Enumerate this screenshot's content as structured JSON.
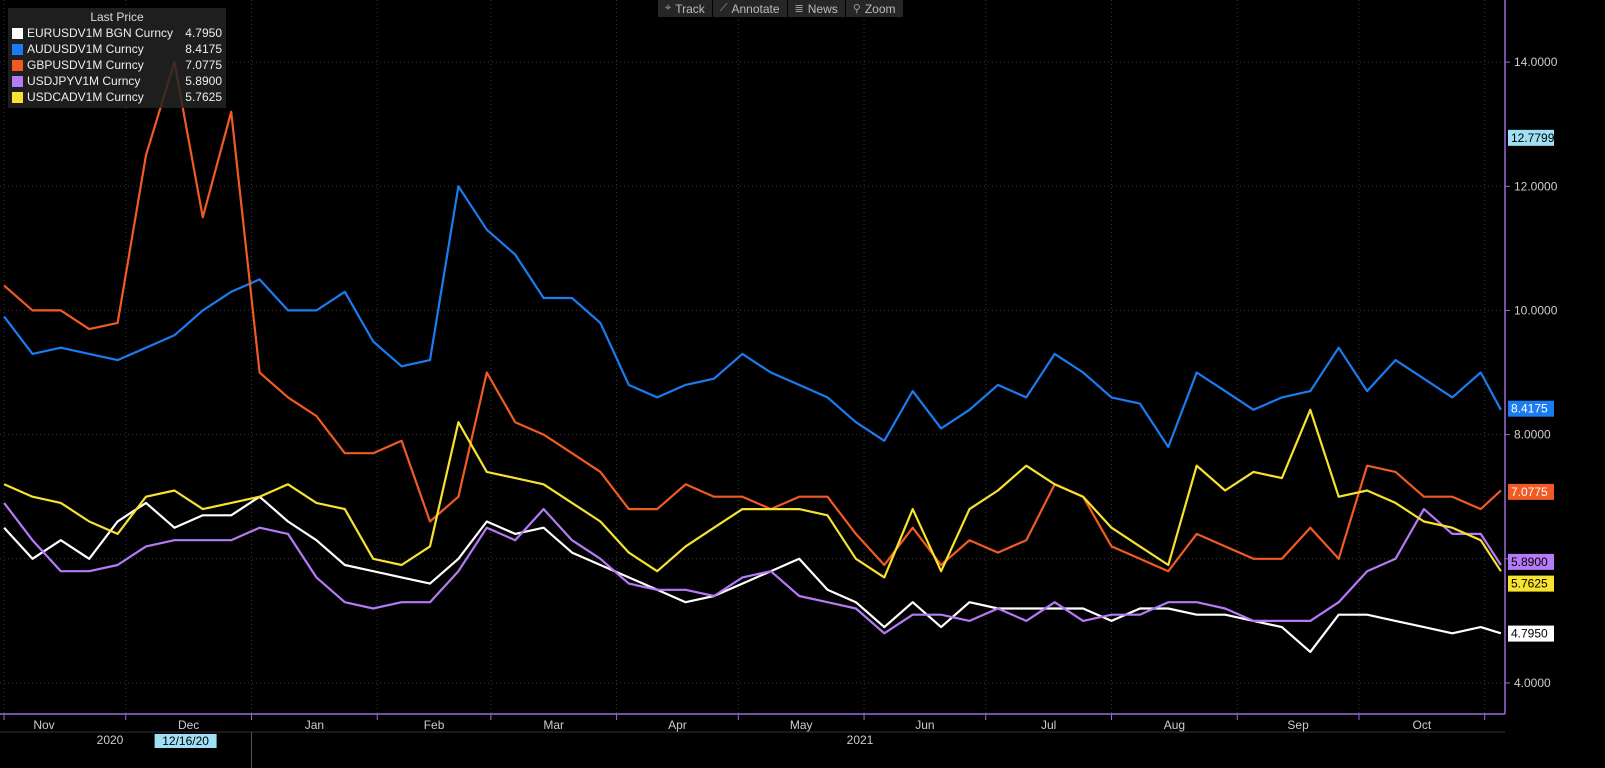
{
  "toolbar": {
    "items": [
      {
        "icon": "crosshair-icon",
        "glyph": "⌖",
        "label": "Track"
      },
      {
        "icon": "pencil-icon",
        "glyph": "⟋",
        "label": "Annotate"
      },
      {
        "icon": "news-icon",
        "glyph": "≣",
        "label": "News"
      },
      {
        "icon": "magnifier-icon",
        "glyph": "⚲",
        "label": "Zoom"
      }
    ]
  },
  "legend": {
    "title": "Last Price",
    "entries": [
      {
        "name": "EURUSDV1M BGN Curncy",
        "value": "4.7950",
        "color": "#ffffff"
      },
      {
        "name": "AUDUSDV1M Curncy",
        "value": "8.4175",
        "color": "#1a7cf0"
      },
      {
        "name": "GBPUSDV1M Curncy",
        "value": "7.0775",
        "color": "#f15a22"
      },
      {
        "name": "USDJPYV1M Curncy",
        "value": "5.8900",
        "color": "#b57af5"
      },
      {
        "name": "USDCADV1M Curncy",
        "value": "5.7625",
        "color": "#f7e22f"
      }
    ]
  },
  "range_marker": {
    "value": "12.7799",
    "color": "#9fe0f5",
    "y": 12.7799
  },
  "chart_data": {
    "type": "line",
    "x_labels": {
      "months": [
        "Nov",
        "Dec",
        "Jan",
        "Feb",
        "Mar",
        "Apr",
        "May",
        "Jun",
        "Jul",
        "Aug",
        "Sep",
        "Oct"
      ],
      "years": [
        "2020",
        "2021"
      ],
      "highlight_date": "12/16/20"
    },
    "ylim": [
      3.5,
      15.0
    ],
    "y_ticks": [
      "4.0000",
      "6.0000",
      "8.0000",
      "10.0000",
      "12.0000",
      "14.0000"
    ],
    "y_tick_values": [
      4,
      6,
      8,
      10,
      12,
      14
    ],
    "grid": true,
    "dates": [
      "2020-11-01",
      "2020-11-08",
      "2020-11-15",
      "2020-11-22",
      "2020-11-29",
      "2020-12-06",
      "2020-12-13",
      "2020-12-20",
      "2020-12-27",
      "2021-01-03",
      "2021-01-10",
      "2021-01-17",
      "2021-01-24",
      "2021-01-31",
      "2021-02-07",
      "2021-02-14",
      "2021-02-21",
      "2021-02-28",
      "2021-03-07",
      "2021-03-14",
      "2021-03-21",
      "2021-03-28",
      "2021-04-04",
      "2021-04-11",
      "2021-04-18",
      "2021-04-25",
      "2021-05-02",
      "2021-05-09",
      "2021-05-16",
      "2021-05-23",
      "2021-05-30",
      "2021-06-06",
      "2021-06-13",
      "2021-06-20",
      "2021-06-27",
      "2021-07-04",
      "2021-07-11",
      "2021-07-18",
      "2021-07-25",
      "2021-08-01",
      "2021-08-08",
      "2021-08-15",
      "2021-08-22",
      "2021-08-29",
      "2021-09-05",
      "2021-09-12",
      "2021-09-19",
      "2021-09-26",
      "2021-10-03",
      "2021-10-10",
      "2021-10-17",
      "2021-10-24",
      "2021-10-31",
      "2021-11-05"
    ],
    "series": [
      {
        "name": "EURUSDV1M BGN Curncy",
        "color": "#ffffff",
        "last": "4.7950",
        "values": [
          6.5,
          6.0,
          6.3,
          6.0,
          6.6,
          6.9,
          6.5,
          6.7,
          6.7,
          7.0,
          6.6,
          6.3,
          5.9,
          5.8,
          5.7,
          5.6,
          6.0,
          6.6,
          6.4,
          6.5,
          6.1,
          5.9,
          5.7,
          5.5,
          5.3,
          5.4,
          5.6,
          5.8,
          6.0,
          5.5,
          5.3,
          4.9,
          5.3,
          4.9,
          5.3,
          5.2,
          5.2,
          5.2,
          5.2,
          5.0,
          5.2,
          5.2,
          5.1,
          5.1,
          5.0,
          4.9,
          4.5,
          5.1,
          5.1,
          5.0,
          4.9,
          4.8,
          4.9,
          4.8
        ]
      },
      {
        "name": "AUDUSDV1M Curncy",
        "color": "#1a7cf0",
        "last": "8.4175",
        "values": [
          9.9,
          9.3,
          9.4,
          9.3,
          9.2,
          9.4,
          9.6,
          10.0,
          10.3,
          10.5,
          10.0,
          10.0,
          10.3,
          9.5,
          9.1,
          9.2,
          12.0,
          11.3,
          10.9,
          10.2,
          10.2,
          9.8,
          8.8,
          8.6,
          8.8,
          8.9,
          9.3,
          9.0,
          8.8,
          8.6,
          8.2,
          7.9,
          8.7,
          8.1,
          8.4,
          8.8,
          8.6,
          9.3,
          9.0,
          8.6,
          8.5,
          7.8,
          9.0,
          8.7,
          8.4,
          8.6,
          8.7,
          9.4,
          8.7,
          9.2,
          8.9,
          8.6,
          9.0,
          8.4
        ]
      },
      {
        "name": "GBPUSDV1M Curncy",
        "color": "#f15a22",
        "last": "7.0775",
        "values": [
          10.4,
          10.0,
          10.0,
          9.7,
          9.8,
          12.5,
          14.0,
          11.5,
          13.2,
          9.0,
          8.6,
          8.3,
          7.7,
          7.7,
          7.9,
          6.6,
          7.0,
          9.0,
          8.2,
          8.0,
          7.7,
          7.4,
          6.8,
          6.8,
          7.2,
          7.0,
          7.0,
          6.8,
          7.0,
          7.0,
          6.4,
          5.9,
          6.5,
          5.9,
          6.3,
          6.1,
          6.3,
          7.2,
          7.0,
          6.2,
          6.0,
          5.8,
          6.4,
          6.2,
          6.0,
          6.0,
          6.5,
          6.0,
          7.5,
          7.4,
          7.0,
          7.0,
          6.8,
          7.1
        ]
      },
      {
        "name": "USDJPYV1M Curncy",
        "color": "#b57af5",
        "last": "5.8900",
        "values": [
          6.9,
          6.3,
          5.8,
          5.8,
          5.9,
          6.2,
          6.3,
          6.3,
          6.3,
          6.5,
          6.4,
          5.7,
          5.3,
          5.2,
          5.3,
          5.3,
          5.8,
          6.5,
          6.3,
          6.8,
          6.3,
          6.0,
          5.6,
          5.5,
          5.5,
          5.4,
          5.7,
          5.8,
          5.4,
          5.3,
          5.2,
          4.8,
          5.1,
          5.1,
          5.0,
          5.2,
          5.0,
          5.3,
          5.0,
          5.1,
          5.1,
          5.3,
          5.3,
          5.2,
          5.0,
          5.0,
          5.0,
          5.3,
          5.8,
          6.0,
          6.8,
          6.4,
          6.4,
          5.9
        ]
      },
      {
        "name": "USDCADV1M Curncy",
        "color": "#f7e22f",
        "last": "5.7625",
        "values": [
          7.2,
          7.0,
          6.9,
          6.6,
          6.4,
          7.0,
          7.1,
          6.8,
          6.9,
          7.0,
          7.2,
          6.9,
          6.8,
          6.0,
          5.9,
          6.2,
          8.2,
          7.4,
          7.3,
          7.2,
          6.9,
          6.6,
          6.1,
          5.8,
          6.2,
          6.5,
          6.8,
          6.8,
          6.8,
          6.7,
          6.0,
          5.7,
          6.8,
          5.8,
          6.8,
          7.1,
          7.5,
          7.2,
          7.0,
          6.5,
          6.2,
          5.9,
          7.5,
          7.1,
          7.4,
          7.3,
          8.4,
          7.0,
          7.1,
          6.9,
          6.6,
          6.5,
          6.3,
          5.8
        ]
      }
    ]
  }
}
